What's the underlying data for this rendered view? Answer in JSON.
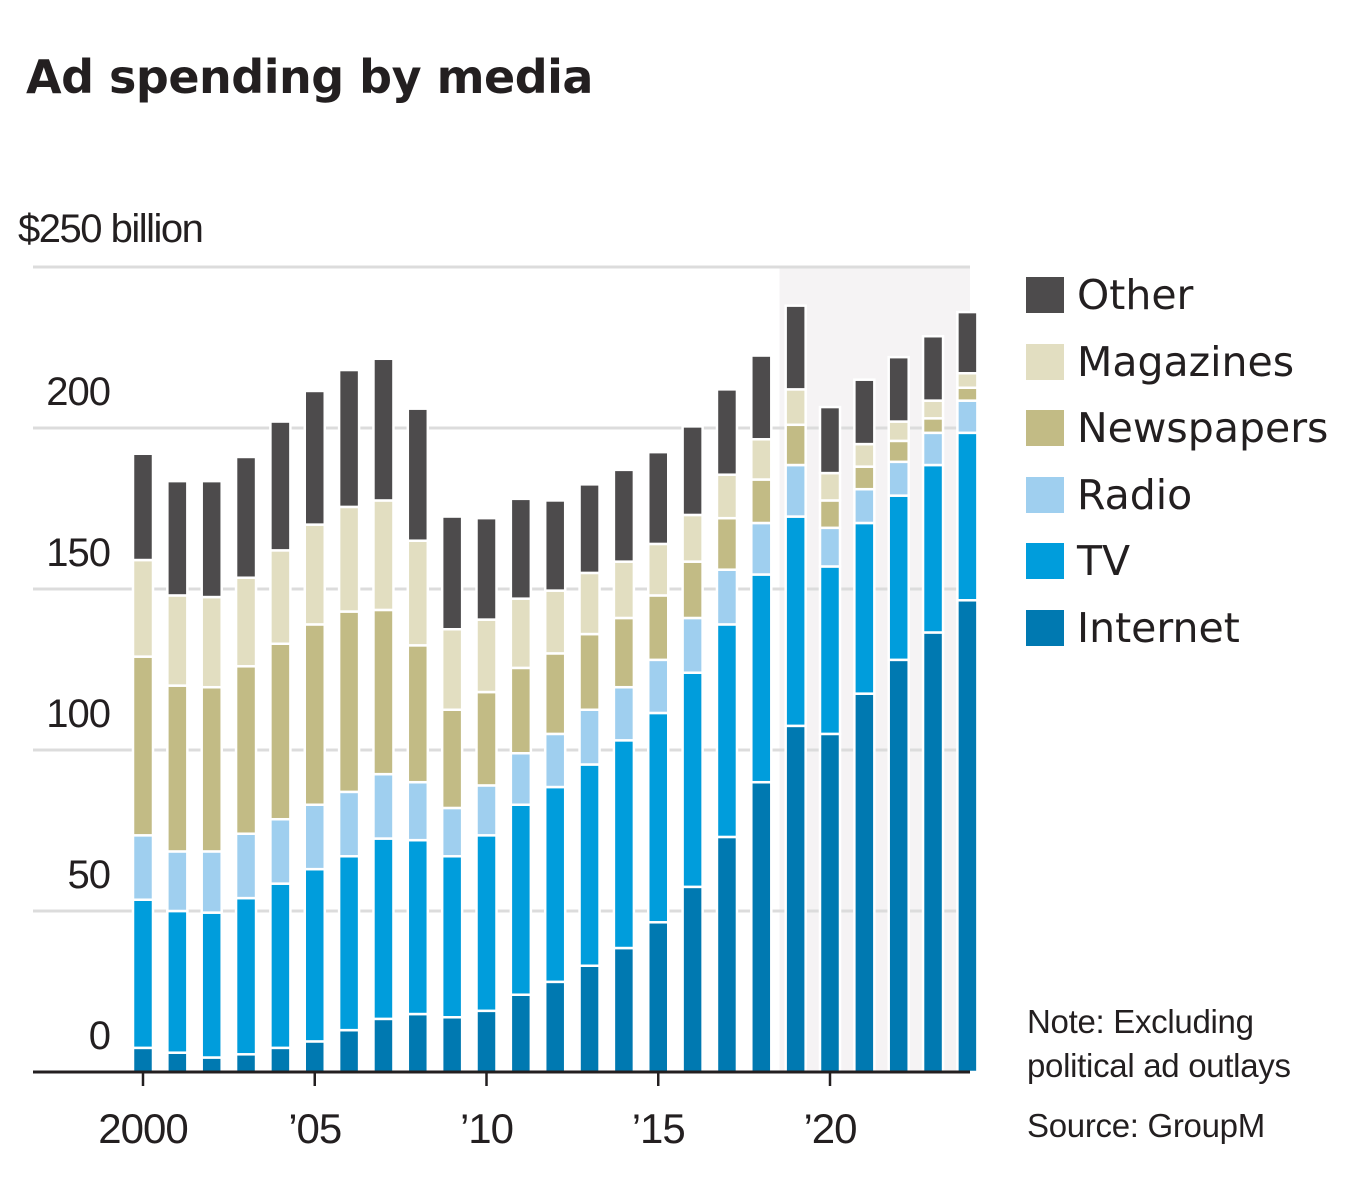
{
  "chart_data": {
    "type": "bar",
    "stacked": true,
    "title": "Ad spending by media",
    "ylabel": "$250 billion",
    "xlabel": "",
    "ylim": [
      0,
      250
    ],
    "yticks": [
      0,
      50,
      100,
      150,
      200,
      250
    ],
    "ytick_labels": [
      "0",
      "50",
      "100",
      "150",
      "200",
      "$250 billion"
    ],
    "grid": true,
    "legend_position": "right",
    "highlighted_range": {
      "from": 2019,
      "to": 2024
    },
    "x": [
      2000,
      2001,
      2002,
      2003,
      2004,
      2005,
      2006,
      2007,
      2008,
      2009,
      2010,
      2011,
      2012,
      2013,
      2014,
      2015,
      2016,
      2017,
      2018,
      2019,
      2020,
      2021,
      2022,
      2023,
      2024
    ],
    "xticks": [
      2000,
      2005,
      2010,
      2015,
      2020
    ],
    "xtick_labels": [
      "2000",
      "’05",
      "’10",
      "’15",
      "’20"
    ],
    "series": [
      {
        "name": "Internet",
        "color": "#0079b1",
        "values": [
          7.5,
          6,
          4.5,
          5.5,
          7.5,
          9.5,
          13,
          16.5,
          18,
          17,
          19,
          24,
          28,
          33,
          38.5,
          46.5,
          57.5,
          73,
          90,
          107.5,
          105,
          117.5,
          128,
          136.5,
          146.5
        ]
      },
      {
        "name": "TV",
        "color": "#009ddc",
        "values": [
          46,
          44,
          45,
          48.5,
          51,
          53.5,
          54,
          56,
          54,
          50,
          54.5,
          59,
          60.5,
          62.5,
          64.5,
          65,
          66.5,
          66,
          64.5,
          65,
          52,
          53,
          51,
          52,
          52
        ]
      },
      {
        "name": "Radio",
        "color": "#9fcfef",
        "values": [
          20,
          18.5,
          19,
          20,
          20,
          20,
          20,
          20,
          18,
          15,
          15.5,
          16,
          16.5,
          17,
          16.5,
          16.5,
          17,
          17,
          16,
          16,
          12,
          10.5,
          10.5,
          10,
          10
        ]
      },
      {
        "name": "Newspapers",
        "color": "#c2bb85",
        "values": [
          55.5,
          51.5,
          51,
          52,
          54.5,
          56,
          56,
          51,
          42.5,
          30.5,
          29,
          26.5,
          25,
          23.5,
          21.5,
          20,
          17.5,
          16,
          13.5,
          12.5,
          8.5,
          7,
          6.5,
          4.5,
          4
        ]
      },
      {
        "name": "Magazines",
        "color": "#e2dec1",
        "values": [
          30,
          28,
          28,
          27.5,
          29,
          31,
          32.5,
          34,
          32.5,
          25,
          22.5,
          21.5,
          19.5,
          19,
          17.5,
          16,
          14.5,
          13.5,
          12.5,
          11,
          8.5,
          7,
          6,
          5.5,
          4.5
        ]
      },
      {
        "name": "Other",
        "color": "#4d4b4c",
        "values": [
          33,
          35.5,
          36,
          37.5,
          40,
          41.5,
          42.5,
          44,
          41,
          35,
          31.5,
          31,
          28,
          27.5,
          28.5,
          28.5,
          27.5,
          26.5,
          26,
          26,
          20.5,
          20,
          20,
          20,
          19
        ]
      }
    ]
  },
  "header": {
    "title": "Ad spending by media"
  },
  "axis": {
    "unit_label": "$250 billion"
  },
  "legend": {
    "items": [
      {
        "label": "Other",
        "color": "#4d4b4c"
      },
      {
        "label": "Magazines",
        "color": "#e2dec1"
      },
      {
        "label": "Newspapers",
        "color": "#c2bb85"
      },
      {
        "label": "Radio",
        "color": "#9fcfef"
      },
      {
        "label": "TV",
        "color": "#009ddc"
      },
      {
        "label": "Internet",
        "color": "#0079b1"
      }
    ]
  },
  "footer": {
    "note_line1": "Note: Excluding",
    "note_line2": "political ad outlays",
    "source": "Source: GroupM"
  },
  "colors": {
    "grid": "#dcdcdc",
    "highlight_bg": "#f5f3f4",
    "axis": "#231f20",
    "text": "#231f20"
  }
}
